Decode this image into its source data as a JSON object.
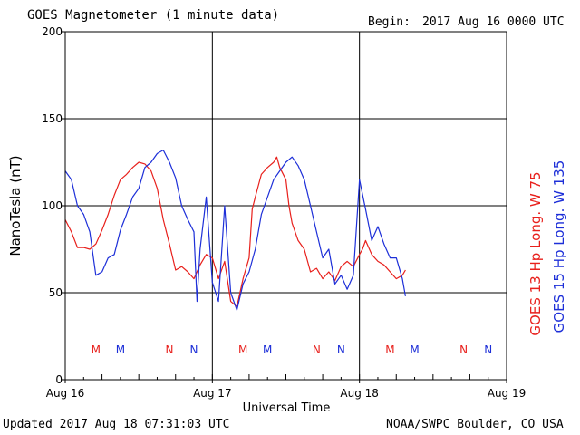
{
  "header": {
    "title": "GOES Magnetometer (1 minute data)",
    "begin_label": "Begin:",
    "begin_value": "2017 Aug 16 0000 UTC"
  },
  "footer": {
    "updated": "Updated 2017 Aug 18 07:31:03 UTC",
    "credit": "NOAA/SWPC Boulder, CO USA"
  },
  "colors": {
    "goes13": "#e8201c",
    "goes15": "#1d2fd8",
    "axis": "#000000"
  },
  "chart_data": {
    "type": "line",
    "xlabel": "Universal Time",
    "ylabel": "NanoTesla (nT)",
    "xlim": [
      0,
      72
    ],
    "ylim": [
      0,
      200
    ],
    "y_ticks": [
      0,
      50,
      100,
      150,
      200
    ],
    "x_ticks": [
      {
        "hour": 0,
        "label": "Aug 16"
      },
      {
        "hour": 24,
        "label": "Aug 17"
      },
      {
        "hour": 48,
        "label": "Aug 18"
      },
      {
        "hour": 72,
        "label": "Aug 19"
      }
    ],
    "grid": true,
    "legend_position": "right (rotated)",
    "series": [
      {
        "name": "GOES 13 Hp  Long. W 75",
        "color": "#e8201c",
        "x": [
          0,
          1,
          2,
          3,
          4,
          5,
          6,
          7,
          8,
          9,
          10,
          11,
          12,
          13,
          14,
          15,
          16,
          17,
          18,
          19,
          20,
          21,
          22,
          23,
          24,
          25,
          26,
          27,
          28,
          29,
          30,
          30.5,
          31,
          32,
          32.5,
          33,
          34,
          34.5,
          35,
          36,
          36.5,
          37,
          38,
          39,
          40,
          41,
          42,
          43,
          44,
          45,
          46,
          47,
          48,
          48.5,
          49,
          50,
          51,
          52,
          53,
          54,
          55,
          55.5
        ],
        "y": [
          92,
          85,
          76,
          76,
          75,
          78,
          86,
          95,
          106,
          115,
          118,
          122,
          125,
          124,
          120,
          110,
          92,
          78,
          63,
          65,
          62,
          58,
          66,
          72,
          70,
          58,
          68,
          45,
          42,
          58,
          70,
          98,
          105,
          118,
          120,
          122,
          125,
          128,
          122,
          115,
          100,
          90,
          80,
          75,
          62,
          64,
          58,
          62,
          57,
          65,
          68,
          65,
          72,
          75,
          80,
          72,
          68,
          66,
          62,
          58,
          60,
          63
        ]
      },
      {
        "name": "GOES 15 Hp  Long. W 135",
        "color": "#1d2fd8",
        "x": [
          0,
          1,
          2,
          3,
          4,
          5,
          6,
          7,
          8,
          9,
          10,
          11,
          12,
          13,
          14,
          15,
          16,
          17,
          18,
          19,
          20,
          21,
          21.5,
          22,
          23,
          24,
          25,
          26,
          27,
          28,
          29,
          30,
          31,
          32,
          33,
          34,
          35,
          36,
          37,
          38,
          39,
          40,
          41,
          42,
          43,
          44,
          45,
          46,
          47,
          48,
          49,
          50,
          51,
          52,
          53,
          54,
          55,
          55.5
        ],
        "y": [
          120,
          115,
          100,
          95,
          85,
          60,
          62,
          70,
          72,
          86,
          95,
          105,
          110,
          122,
          125,
          130,
          132,
          125,
          116,
          100,
          92,
          85,
          45,
          75,
          105,
          56,
          45,
          100,
          50,
          40,
          55,
          62,
          75,
          95,
          105,
          115,
          120,
          125,
          128,
          123,
          115,
          100,
          85,
          70,
          75,
          55,
          60,
          52,
          60,
          115,
          98,
          80,
          88,
          78,
          70,
          70,
          58,
          48
        ]
      }
    ],
    "annotations": [
      {
        "hour": 5,
        "label": "M",
        "color": "#e8201c"
      },
      {
        "hour": 9,
        "label": "M",
        "color": "#1d2fd8"
      },
      {
        "hour": 17,
        "label": "N",
        "color": "#e8201c"
      },
      {
        "hour": 21,
        "label": "N",
        "color": "#1d2fd8"
      },
      {
        "hour": 29,
        "label": "M",
        "color": "#e8201c"
      },
      {
        "hour": 33,
        "label": "M",
        "color": "#1d2fd8"
      },
      {
        "hour": 41,
        "label": "N",
        "color": "#e8201c"
      },
      {
        "hour": 45,
        "label": "N",
        "color": "#1d2fd8"
      },
      {
        "hour": 53,
        "label": "M",
        "color": "#e8201c"
      },
      {
        "hour": 57,
        "label": "M",
        "color": "#1d2fd8"
      },
      {
        "hour": 65,
        "label": "N",
        "color": "#e8201c"
      },
      {
        "hour": 69,
        "label": "N",
        "color": "#1d2fd8"
      }
    ]
  }
}
